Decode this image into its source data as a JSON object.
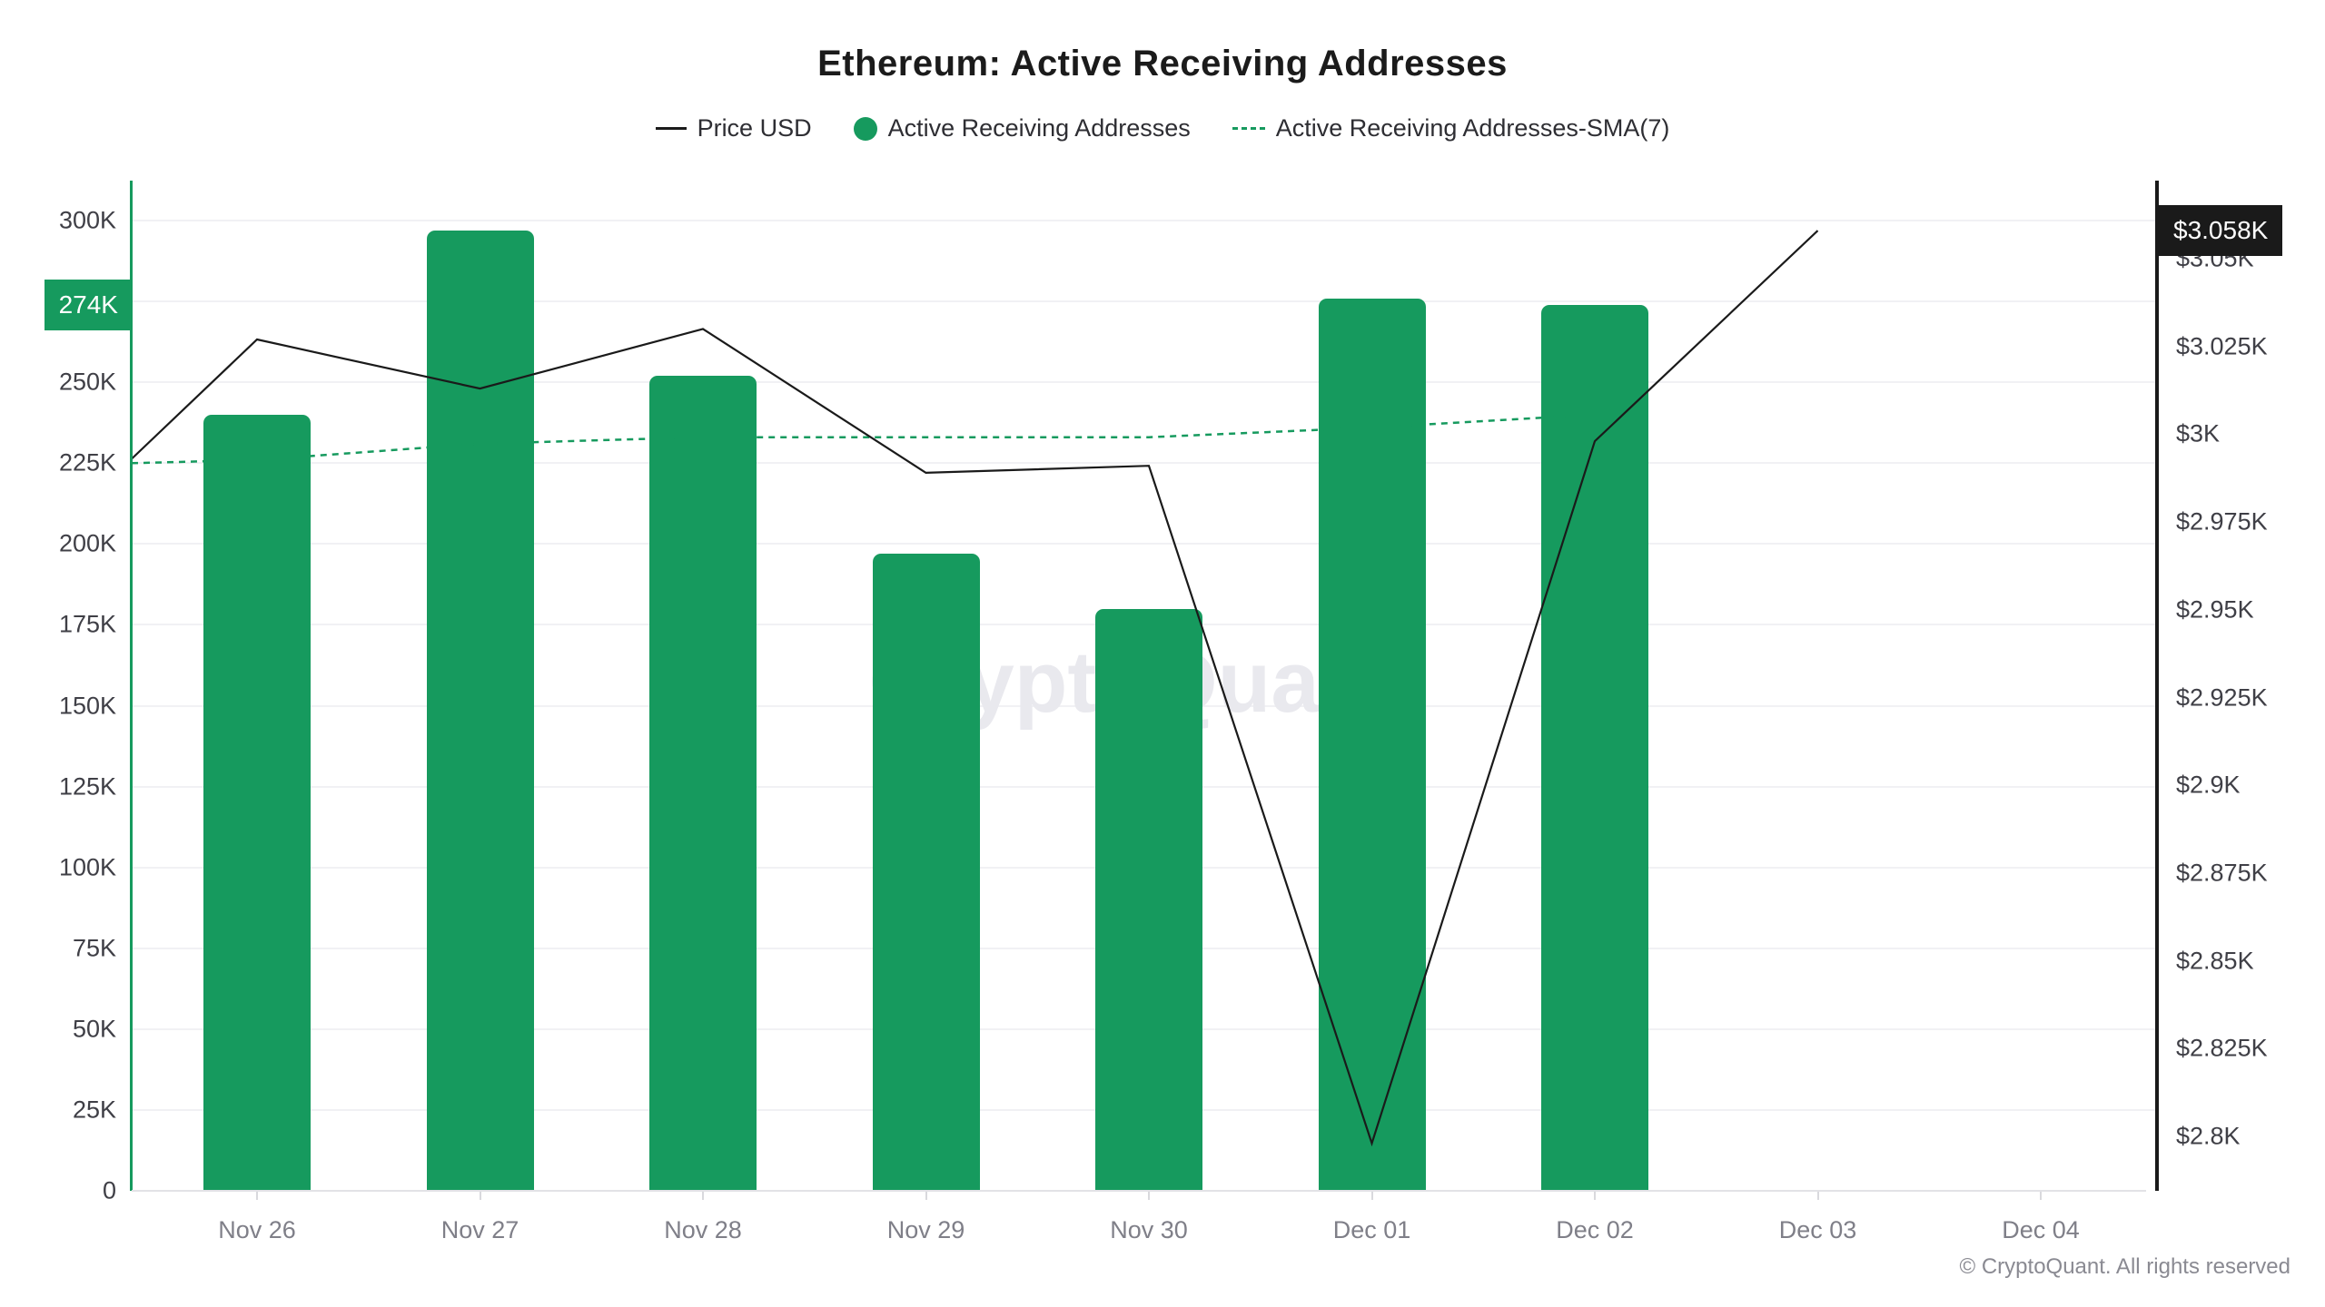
{
  "title": "Ethereum: Active Receiving Addresses",
  "legend": [
    {
      "label": "Price USD",
      "swatch": "line",
      "color": "#1a1a1a"
    },
    {
      "label": "Active Receiving Addresses",
      "swatch": "dot",
      "color": "#169a5e"
    },
    {
      "label": "Active Receiving Addresses-SMA(7)",
      "swatch": "dashed",
      "color": "#169a5e"
    }
  ],
  "watermark": "CryptoQuant",
  "copyright": "© CryptoQuant. All rights reserved",
  "colors": {
    "green": "#169a5e",
    "black": "#1a1a1a",
    "gridline": "#f1f1f4",
    "x_axis_line": "#e2e2e6"
  },
  "chart_data": {
    "type": "bar",
    "categories": [
      "Nov 26",
      "Nov 27",
      "Nov 28",
      "Nov 29",
      "Nov 30",
      "Dec 01",
      "Dec 02",
      "Dec 03",
      "Dec 04"
    ],
    "series": [
      {
        "name": "Active Receiving Addresses",
        "type": "bar",
        "axis": "left",
        "color": "#169a5e",
        "values": [
          240000,
          297000,
          252000,
          197000,
          180000,
          276000,
          274000,
          null,
          null
        ]
      },
      {
        "name": "Active Receiving Addresses-SMA(7)",
        "type": "line",
        "style": "dashed",
        "axis": "left",
        "color": "#169a5e",
        "edge_start": 225000,
        "values": [
          226000,
          231000,
          233000,
          233000,
          233000,
          236000,
          240000,
          null,
          null
        ]
      },
      {
        "name": "Price USD",
        "type": "line",
        "style": "solid",
        "axis": "right",
        "unit": "USD",
        "color": "#1a1a1a",
        "edge_start": 2993,
        "values": [
          3027,
          3013,
          3030,
          2989,
          2991,
          2798,
          2998,
          3058,
          null
        ]
      }
    ],
    "left_axis": {
      "title": "Active Receiving Addresses",
      "min": 0,
      "max": 300000,
      "tick_step": 25000,
      "ticks": [
        "0",
        "25K",
        "50K",
        "75K",
        "100K",
        "125K",
        "150K",
        "175K",
        "200K",
        "225K",
        "250K",
        "275K",
        "300K"
      ],
      "badge": {
        "text": "274K",
        "value": 274000
      }
    },
    "right_axis": {
      "title": "Price USD",
      "min": 2800,
      "max": 3050,
      "tick_step": 25,
      "ticks": [
        "$2.8K",
        "$2.825K",
        "$2.85K",
        "$2.875K",
        "$2.9K",
        "$2.925K",
        "$2.95K",
        "$2.975K",
        "$3K",
        "$3.025K",
        "$3.05K"
      ],
      "badge": {
        "text": "$3.058K",
        "value": 3058
      }
    },
    "grid": true,
    "legend_position": "top"
  }
}
